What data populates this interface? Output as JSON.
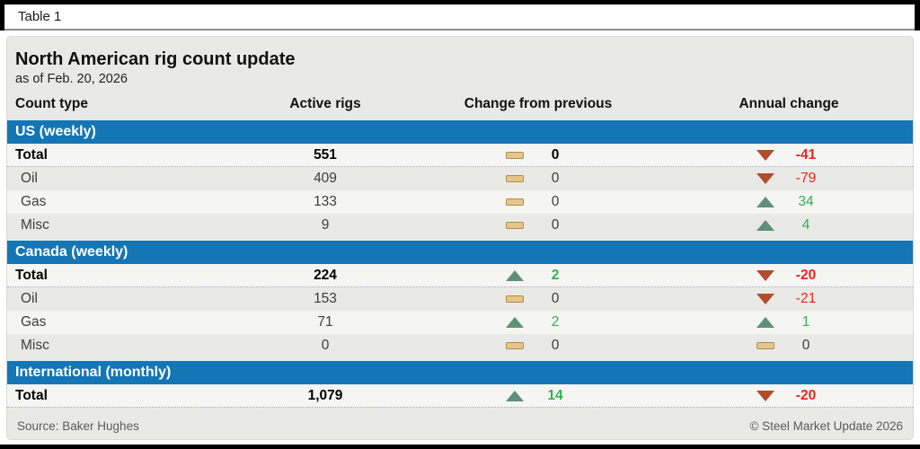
{
  "page": {
    "tag": "Table 1"
  },
  "chart_data": {
    "type": "table",
    "title": "North American rig count update",
    "subtitle": "as of Feb. 20, 2026",
    "columns": [
      "Count type",
      "Active rigs",
      "Change from previous",
      "Annual change"
    ],
    "sections": [
      {
        "label": "US (weekly)",
        "rows": [
          {
            "count_type": "Total",
            "active_rigs": "551",
            "change_from_previous": "0",
            "change_direction": "none",
            "annual_change": "-41",
            "annual_direction": "down",
            "is_total": true
          },
          {
            "count_type": "Oil",
            "active_rigs": "409",
            "change_from_previous": "0",
            "change_direction": "none",
            "annual_change": "-79",
            "annual_direction": "down",
            "is_total": false
          },
          {
            "count_type": "Gas",
            "active_rigs": "133",
            "change_from_previous": "0",
            "change_direction": "none",
            "annual_change": "34",
            "annual_direction": "up",
            "is_total": false
          },
          {
            "count_type": "Misc",
            "active_rigs": "9",
            "change_from_previous": "0",
            "change_direction": "none",
            "annual_change": "4",
            "annual_direction": "up",
            "is_total": false
          }
        ]
      },
      {
        "label": "Canada (weekly)",
        "rows": [
          {
            "count_type": "Total",
            "active_rigs": "224",
            "change_from_previous": "2",
            "change_direction": "up",
            "annual_change": "-20",
            "annual_direction": "down",
            "is_total": true
          },
          {
            "count_type": "Oil",
            "active_rigs": "153",
            "change_from_previous": "0",
            "change_direction": "none",
            "annual_change": "-21",
            "annual_direction": "down",
            "is_total": false
          },
          {
            "count_type": "Gas",
            "active_rigs": "71",
            "change_from_previous": "2",
            "change_direction": "up",
            "annual_change": "1",
            "annual_direction": "up",
            "is_total": false
          },
          {
            "count_type": "Misc",
            "active_rigs": "0",
            "change_from_previous": "0",
            "change_direction": "none",
            "annual_change": "0",
            "annual_direction": "none",
            "is_total": false
          }
        ]
      },
      {
        "label": "International (monthly)",
        "rows": [
          {
            "count_type": "Total",
            "active_rigs": "1,079",
            "change_from_previous": "14",
            "change_direction": "up",
            "annual_change": "-20",
            "annual_direction": "down",
            "is_total": true
          }
        ]
      }
    ]
  },
  "footer": {
    "source": "Source: Baker Hughes",
    "copyright": "© Steel Market Update 2026"
  },
  "colors": {
    "section_band": "#1576b5",
    "panel_background": "#e9e9e7",
    "row_light": "#f5f5f3",
    "row_dark": "#e9e9e7",
    "no_change_fill": "#e7c488",
    "no_change_border": "#ae8c52",
    "up_triangle": "#5e9077",
    "down_triangle": "#b34c2a",
    "positive_text": "#2cb34a",
    "negative_text": "#f02318"
  }
}
